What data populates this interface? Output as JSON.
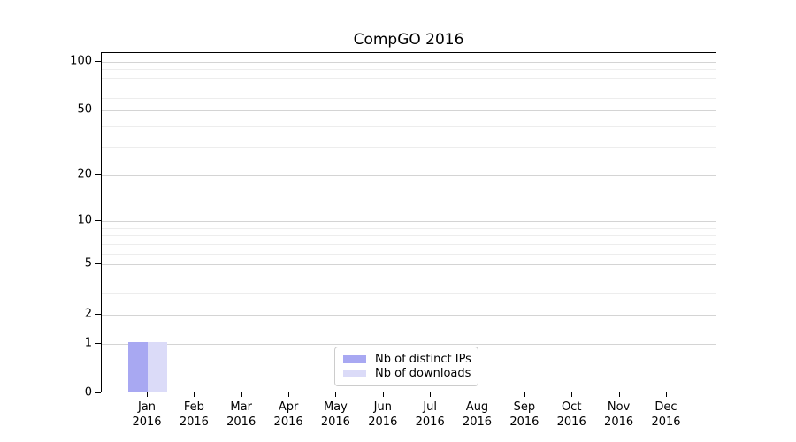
{
  "chart_data": {
    "type": "bar",
    "title": "CompGO 2016",
    "x_months": [
      "Jan",
      "Feb",
      "Mar",
      "Apr",
      "May",
      "Jun",
      "Jul",
      "Aug",
      "Sep",
      "Oct",
      "Nov",
      "Dec"
    ],
    "x_year": "2016",
    "series": [
      {
        "name": "Nb of distinct IPs",
        "color": "#a8a8f2",
        "values": [
          1,
          0,
          0,
          0,
          0,
          0,
          0,
          0,
          0,
          0,
          0,
          0
        ]
      },
      {
        "name": "Nb of downloads",
        "color": "#dbdbf8",
        "values": [
          1,
          0,
          0,
          0,
          0,
          0,
          0,
          0,
          0,
          0,
          0,
          0
        ]
      }
    ],
    "y_scale": "log1p",
    "ylim": [
      0,
      113
    ],
    "y_major_ticks": [
      0,
      1,
      2,
      5,
      10,
      20,
      50,
      100
    ],
    "y_minor_gridlines": [
      3,
      4,
      6,
      7,
      8,
      9,
      30,
      40,
      60,
      70,
      80,
      90
    ],
    "grid": "horizontal",
    "legend_position": "lower center",
    "colors": {
      "major_grid": "#d4d4d4",
      "minor_grid": "#ededed",
      "axis": "#000000",
      "text": "#000000"
    }
  }
}
